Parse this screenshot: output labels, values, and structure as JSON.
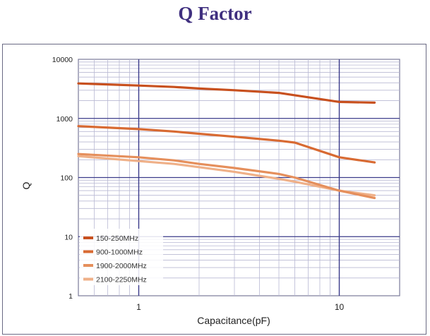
{
  "page_title": "Q Factor",
  "chart_data": {
    "type": "line",
    "title": "Q Factor",
    "xlabel": "Capacitance(pF)",
    "ylabel": "Q",
    "x_scale": "log",
    "y_scale": "log",
    "xlim": [
      0.5,
      20
    ],
    "ylim": [
      1,
      10000
    ],
    "x_ticks": [
      {
        "value": 1,
        "label": "1"
      },
      {
        "value": 10,
        "label": "10"
      }
    ],
    "y_ticks": [
      {
        "value": 1,
        "label": "1"
      },
      {
        "value": 10,
        "label": "10"
      },
      {
        "value": 100,
        "label": "100"
      },
      {
        "value": 1000,
        "label": "1000"
      },
      {
        "value": 10000,
        "label": "10000"
      }
    ],
    "grid": true,
    "legend_position": "bottom-left",
    "series": [
      {
        "name": "150-250MHz",
        "color": "#c8501e",
        "x": [
          0.5,
          1,
          1.5,
          2,
          3,
          5,
          10,
          15
        ],
        "y": [
          3900,
          3600,
          3400,
          3200,
          3000,
          2700,
          1900,
          1850
        ]
      },
      {
        "name": "900-1000MHz",
        "color": "#d86a32",
        "x": [
          0.5,
          1,
          1.5,
          2,
          3,
          5,
          6,
          10,
          15
        ],
        "y": [
          740,
          660,
          600,
          550,
          490,
          420,
          390,
          220,
          180
        ]
      },
      {
        "name": "1900-2000MHz",
        "color": "#e58f5c",
        "x": [
          0.5,
          1,
          1.5,
          2,
          3,
          5,
          6,
          10,
          15
        ],
        "y": [
          250,
          220,
          195,
          170,
          145,
          115,
          100,
          60,
          45
        ]
      },
      {
        "name": "2100-2250MHz",
        "color": "#efb088",
        "x": [
          0.5,
          1,
          1.5,
          2,
          3,
          5,
          6,
          10,
          15
        ],
        "y": [
          230,
          190,
          170,
          150,
          125,
          95,
          85,
          60,
          50
        ]
      }
    ]
  }
}
